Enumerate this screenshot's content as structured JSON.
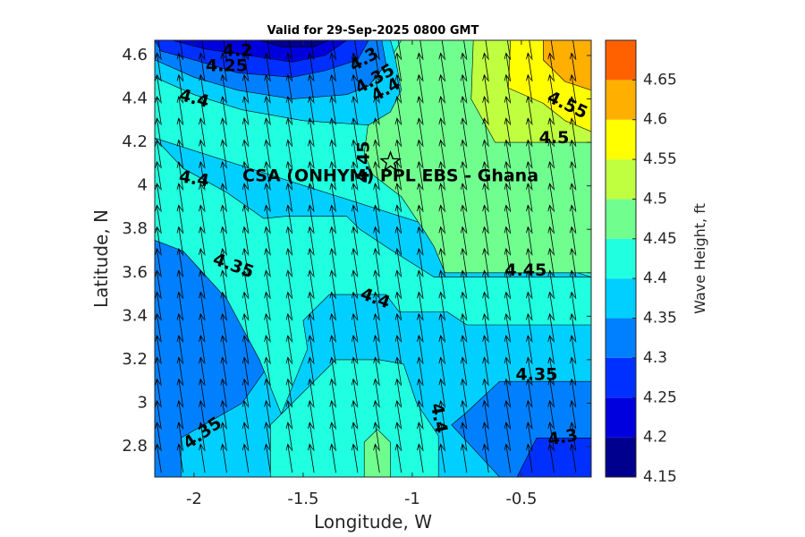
{
  "chart_data": {
    "type": "contourf",
    "title": "Valid for 29-Sep-2025 0800 GMT",
    "xlabel": "Longitude, W",
    "ylabel": "Latitude, N",
    "xlim": [
      -2.18,
      -0.18
    ],
    "ylim": [
      2.66,
      4.67
    ],
    "x_ticks": [
      -2,
      -1.5,
      -1,
      -0.5
    ],
    "x_tick_labels": [
      "-2",
      "-1.5",
      "-1",
      "-0.5"
    ],
    "y_ticks": [
      2.8,
      3.0,
      3.2,
      3.4,
      3.6,
      3.8,
      4.0,
      4.2,
      4.4,
      4.6
    ],
    "y_tick_labels": [
      "2.8",
      "3",
      "3.2",
      "3.4",
      "3.6",
      "3.8",
      "4",
      "4.2",
      "4.4",
      "4.6"
    ],
    "colorbar": {
      "label": "Wave Height, ft",
      "range": [
        4.15,
        4.7
      ],
      "levels": [
        4.15,
        4.2,
        4.25,
        4.3,
        4.35,
        4.4,
        4.45,
        4.5,
        4.55,
        4.6,
        4.65,
        4.7
      ],
      "tick_values": [
        4.15,
        4.2,
        4.25,
        4.3,
        4.35,
        4.4,
        4.45,
        4.5,
        4.55,
        4.6,
        4.65
      ],
      "tick_labels": [
        "4.15",
        "4.2",
        "4.25",
        "4.3",
        "4.35",
        "4.4",
        "4.45",
        "4.5",
        "4.55",
        "4.6",
        "4.65"
      ],
      "colors": [
        "#00008f",
        "#0000df",
        "#0030ff",
        "#0080ff",
        "#00cfff",
        "#20ffdf",
        "#70ff8f",
        "#bfff40",
        "#ffff00",
        "#ffaf00",
        "#ff6000",
        "#ff1000"
      ]
    },
    "fill_regions": [
      {
        "level": 4.35,
        "points": [
          [
            -2.18,
            2.66
          ],
          [
            -0.18,
            2.66
          ],
          [
            -0.18,
            4.67
          ],
          [
            -2.18,
            4.67
          ]
        ]
      },
      {
        "level": 4.3,
        "points": [
          [
            -2.18,
            2.66
          ],
          [
            -2.06,
            2.66
          ],
          [
            -2.06,
            2.84
          ],
          [
            -1.78,
            3.0
          ],
          [
            -1.5,
            3.4
          ],
          [
            -1.58,
            3.56
          ],
          [
            -1.58,
            3.62
          ],
          [
            -1.85,
            3.7
          ],
          [
            -1.85,
            3.75
          ],
          [
            -2.18,
            3.75
          ]
        ]
      },
      {
        "level": 4.3,
        "points": [
          [
            -0.18,
            2.66
          ],
          [
            -0.18,
            3.1
          ],
          [
            -0.6,
            3.1
          ],
          [
            -0.76,
            2.95
          ],
          [
            -0.82,
            2.9
          ],
          [
            -0.6,
            2.66
          ]
        ]
      },
      {
        "level": 4.25,
        "points": [
          [
            -0.18,
            2.66
          ],
          [
            -0.18,
            2.84
          ],
          [
            -0.43,
            2.84
          ],
          [
            -0.52,
            2.66
          ]
        ]
      },
      {
        "level": 4.4,
        "points": [
          [
            -1.65,
            2.66
          ],
          [
            -0.88,
            2.66
          ],
          [
            -0.88,
            2.85
          ],
          [
            -0.98,
            3.0
          ],
          [
            -1.04,
            3.18
          ],
          [
            -1.15,
            3.2
          ],
          [
            -1.35,
            3.2
          ],
          [
            -1.45,
            3.1
          ],
          [
            -1.6,
            2.95
          ],
          [
            -1.65,
            2.9
          ]
        ]
      },
      {
        "level": 4.45,
        "points": [
          [
            -1.22,
            2.66
          ],
          [
            -1.1,
            2.66
          ],
          [
            -1.1,
            2.82
          ],
          [
            -1.16,
            2.88
          ],
          [
            -1.22,
            2.82
          ]
        ]
      },
      {
        "level": 4.4,
        "points": [
          [
            -2.18,
            4.22
          ],
          [
            -2.05,
            4.08
          ],
          [
            -1.85,
            3.97
          ],
          [
            -1.68,
            3.85
          ],
          [
            -1.58,
            3.86
          ],
          [
            -1.3,
            3.86
          ],
          [
            -1.24,
            3.8
          ],
          [
            -1.12,
            3.72
          ],
          [
            -0.9,
            3.58
          ],
          [
            -0.65,
            3.58
          ],
          [
            -0.18,
            3.58
          ],
          [
            -0.18,
            3.36
          ],
          [
            -0.4,
            3.36
          ],
          [
            -0.75,
            3.36
          ],
          [
            -0.84,
            3.42
          ],
          [
            -1.06,
            3.42
          ],
          [
            -1.12,
            3.5
          ],
          [
            -1.38,
            3.5
          ],
          [
            -1.5,
            3.38
          ],
          [
            -1.48,
            3.25
          ],
          [
            -1.6,
            2.95
          ],
          [
            -1.7,
            3.2
          ],
          [
            -1.85,
            3.48
          ],
          [
            -2.05,
            3.7
          ],
          [
            -2.18,
            3.75
          ],
          [
            -2.18,
            4.22
          ],
          [
            -2.18,
            4.67
          ],
          [
            -0.18,
            4.67
          ],
          [
            -0.18,
            3.58
          ]
        ]
      },
      {
        "level": 4.45,
        "points": [
          [
            -1.18,
            4.05
          ],
          [
            -1.05,
            3.95
          ],
          [
            -0.95,
            3.8
          ],
          [
            -0.9,
            3.72
          ],
          [
            -0.85,
            3.6
          ],
          [
            -0.7,
            3.6
          ],
          [
            -0.18,
            3.6
          ],
          [
            -0.18,
            4.46
          ],
          [
            -0.28,
            4.46
          ],
          [
            -0.4,
            4.55
          ],
          [
            -0.48,
            4.62
          ],
          [
            -0.55,
            4.67
          ],
          [
            -1.05,
            4.67
          ],
          [
            -1.12,
            4.55
          ],
          [
            -1.2,
            4.3
          ],
          [
            -1.22,
            4.15
          ]
        ]
      },
      {
        "level": 4.5,
        "points": [
          [
            -0.72,
            4.67
          ],
          [
            -0.73,
            4.4
          ],
          [
            -0.62,
            4.2
          ],
          [
            -0.5,
            4.2
          ],
          [
            -0.18,
            4.2
          ],
          [
            -0.18,
            4.67
          ]
        ]
      },
      {
        "level": 4.55,
        "points": [
          [
            -0.55,
            4.67
          ],
          [
            -0.56,
            4.45
          ],
          [
            -0.4,
            4.38
          ],
          [
            -0.3,
            4.3
          ],
          [
            -0.18,
            4.25
          ],
          [
            -0.18,
            4.67
          ]
        ]
      },
      {
        "level": 4.6,
        "points": [
          [
            -0.4,
            4.67
          ],
          [
            -0.4,
            4.58
          ],
          [
            -0.3,
            4.48
          ],
          [
            -0.18,
            4.44
          ],
          [
            -0.18,
            4.67
          ]
        ]
      },
      {
        "level": 4.35,
        "points": [
          [
            -2.18,
            4.67
          ],
          [
            -2.18,
            4.5
          ],
          [
            -2.0,
            4.42
          ],
          [
            -1.78,
            4.35
          ],
          [
            -1.5,
            4.3
          ],
          [
            -1.2,
            4.28
          ],
          [
            -1.1,
            4.34
          ],
          [
            -1.05,
            4.44
          ],
          [
            -1.08,
            4.6
          ],
          [
            -1.1,
            4.67
          ]
        ]
      },
      {
        "level": 4.3,
        "points": [
          [
            -2.18,
            4.67
          ],
          [
            -2.18,
            4.58
          ],
          [
            -2.0,
            4.5
          ],
          [
            -1.8,
            4.44
          ],
          [
            -1.55,
            4.4
          ],
          [
            -1.3,
            4.42
          ],
          [
            -1.2,
            4.46
          ],
          [
            -1.12,
            4.56
          ],
          [
            -1.14,
            4.67
          ]
        ]
      },
      {
        "level": 4.25,
        "points": [
          [
            -2.18,
            4.67
          ],
          [
            -2.15,
            4.62
          ],
          [
            -2.0,
            4.58
          ],
          [
            -1.8,
            4.52
          ],
          [
            -1.55,
            4.5
          ],
          [
            -1.4,
            4.53
          ],
          [
            -1.25,
            4.58
          ],
          [
            -1.2,
            4.67
          ]
        ]
      },
      {
        "level": 4.2,
        "points": [
          [
            -2.1,
            4.67
          ],
          [
            -1.95,
            4.63
          ],
          [
            -1.75,
            4.6
          ],
          [
            -1.55,
            4.57
          ],
          [
            -1.4,
            4.6
          ],
          [
            -1.3,
            4.67
          ]
        ]
      },
      {
        "level": 4.15,
        "points": [
          [
            -1.7,
            4.67
          ],
          [
            -1.6,
            4.64
          ],
          [
            -1.45,
            4.64
          ],
          [
            -1.38,
            4.67
          ]
        ]
      }
    ],
    "contour_labels": [
      {
        "text": "4.2",
        "x": -1.8,
        "y": 4.62,
        "angle": 0
      },
      {
        "text": "4.25",
        "x": -1.85,
        "y": 4.55,
        "angle": 0
      },
      {
        "text": "4.3",
        "x": -1.22,
        "y": 4.58,
        "angle": -30
      },
      {
        "text": "4.35",
        "x": -1.17,
        "y": 4.49,
        "angle": -30
      },
      {
        "text": "4.4",
        "x": -1.12,
        "y": 4.44,
        "angle": -30
      },
      {
        "text": "4.4",
        "x": -2.0,
        "y": 4.4,
        "angle": 15
      },
      {
        "text": "4.55",
        "x": -0.29,
        "y": 4.37,
        "angle": 25
      },
      {
        "text": "4.5",
        "x": -0.35,
        "y": 4.22,
        "angle": 0
      },
      {
        "text": "4.45",
        "x": -1.22,
        "y": 4.11,
        "angle": -90
      },
      {
        "text": "4.4",
        "x": -2.0,
        "y": 4.03,
        "angle": 10
      },
      {
        "text": "4.35",
        "x": -1.82,
        "y": 3.63,
        "angle": 20
      },
      {
        "text": "4.4",
        "x": -1.17,
        "y": 3.48,
        "angle": 20
      },
      {
        "text": "4.45",
        "x": -0.48,
        "y": 3.61,
        "angle": 0
      },
      {
        "text": "4.35",
        "x": -0.43,
        "y": 3.13,
        "angle": 0
      },
      {
        "text": "4.4",
        "x": -0.88,
        "y": 2.93,
        "angle": 80
      },
      {
        "text": "4.35",
        "x": -1.96,
        "y": 2.86,
        "angle": -35
      },
      {
        "text": "4.3",
        "x": -0.31,
        "y": 2.84,
        "angle": -10
      }
    ],
    "station": {
      "name": "CSA (ONHYM) PPL EBS  - Ghana",
      "lon": -1.1,
      "lat": 4.11
    },
    "quiver": {
      "x_start": -2.15,
      "x_step": 0.1,
      "x_count": 20,
      "y_start": 2.68,
      "y_step": 0.1,
      "y_count": 20,
      "u": -0.02,
      "v": 0.13
    }
  }
}
